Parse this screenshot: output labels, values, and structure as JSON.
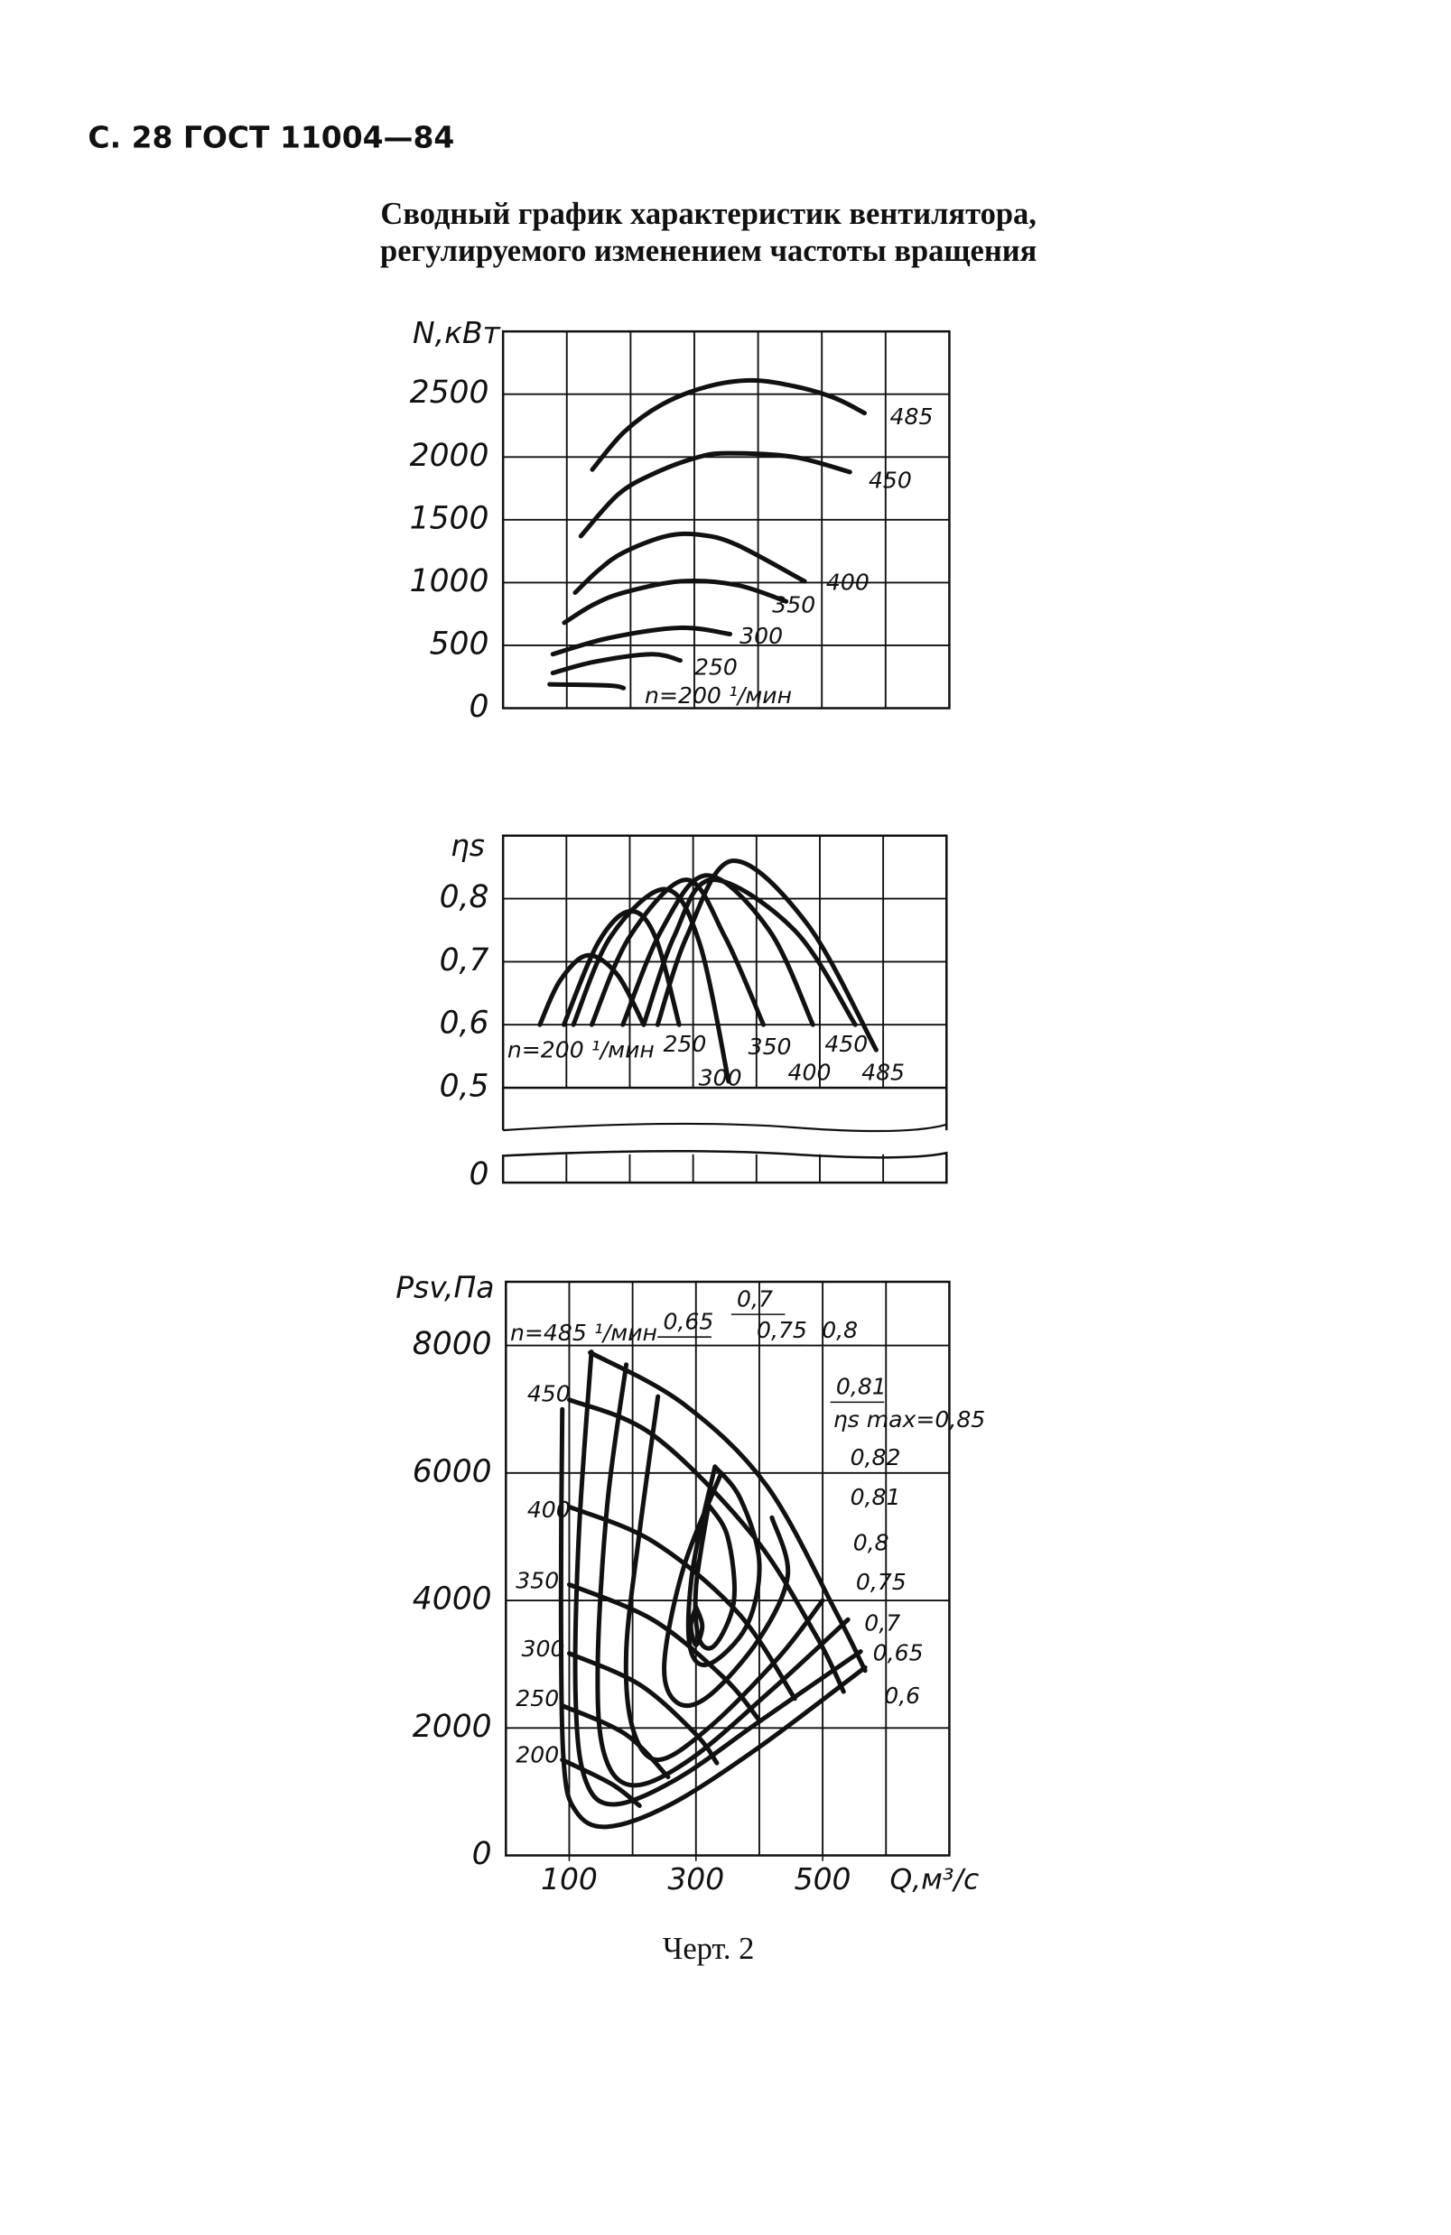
{
  "header": "С. 28 ГОСТ 11004—84",
  "title": [
    "Сводный график характеристик вентилятора,",
    "регулируемого изменением частоты вращения"
  ],
  "caption": "Черт. 2",
  "chart_data": [
    {
      "type": "line",
      "ylabel": "N,кВт",
      "xlim": [
        0,
        700
      ],
      "xgrid": [
        100,
        200,
        300,
        400,
        500,
        600
      ],
      "ylim": [
        0,
        3000
      ],
      "yticks": [
        0,
        500,
        1000,
        1500,
        2000,
        2500
      ],
      "color": "#111111",
      "series": [
        {
          "name": "485",
          "x": [
            140,
            190,
            250,
            320,
            390,
            460,
            520,
            567
          ],
          "values": [
            1900,
            2200,
            2420,
            2560,
            2610,
            2560,
            2470,
            2350
          ]
        },
        {
          "name": "450",
          "x": [
            122,
            180,
            233,
            300,
            350,
            456,
            544
          ],
          "values": [
            1370,
            1700,
            1860,
            1990,
            2030,
            2000,
            1880
          ]
        },
        {
          "name": "400",
          "x": [
            113,
            150,
            189,
            256,
            310,
            367,
            473
          ],
          "values": [
            920,
            1100,
            1240,
            1370,
            1380,
            1300,
            1010
          ]
        },
        {
          "name": "350",
          "x": [
            96,
            140,
            189,
            278,
            367,
            444
          ],
          "values": [
            680,
            820,
            920,
            1010,
            980,
            850
          ]
        },
        {
          "name": "300",
          "x": [
            78,
            167,
            278,
            356
          ],
          "values": [
            430,
            560,
            640,
            590
          ]
        },
        {
          "name": "250",
          "x": [
            78,
            144,
            233,
            278
          ],
          "values": [
            280,
            370,
            430,
            380
          ]
        },
        {
          "name": "n=200 ¹/мин",
          "x": [
            73,
            167,
            189
          ],
          "values": [
            190,
            180,
            160
          ]
        }
      ]
    },
    {
      "type": "line",
      "ylabel": "ηs",
      "xlim": [
        0,
        700
      ],
      "xgrid": [
        100,
        200,
        300,
        400,
        500,
        600
      ],
      "ylim": [
        0.5,
        0.9
      ],
      "yticks": [
        {
          "value": 0.5,
          "label": "0,5"
        },
        {
          "value": 0.6,
          "label": "0,6"
        },
        {
          "value": 0.7,
          "label": "0,7"
        },
        {
          "value": 0.8,
          "label": "0,8"
        }
      ],
      "ybreak_tick": 0,
      "color": "#111111",
      "series": [
        {
          "name": "n=200 ¹/мин",
          "x": [
            58,
            90,
            133,
            180,
            222
          ],
          "values": [
            0.6,
            0.67,
            0.71,
            0.68,
            0.6
          ]
        },
        {
          "name": "250",
          "x": [
            96,
            150,
            200,
            240,
            278
          ],
          "values": [
            0.6,
            0.73,
            0.78,
            0.74,
            0.6
          ]
        },
        {
          "name": "300",
          "x": [
            111,
            170,
            256,
            310,
            356
          ],
          "values": [
            0.6,
            0.74,
            0.815,
            0.73,
            0.51
          ]
        },
        {
          "name": "350",
          "x": [
            140,
            200,
            289,
            350,
            411
          ],
          "values": [
            0.6,
            0.74,
            0.83,
            0.74,
            0.6
          ]
        },
        {
          "name": "400",
          "x": [
            189,
            250,
            322,
            420,
            489
          ],
          "values": [
            0.6,
            0.75,
            0.837,
            0.75,
            0.6
          ]
        },
        {
          "name": "450",
          "x": [
            222,
            270,
            330,
            460,
            556
          ],
          "values": [
            0.6,
            0.74,
            0.83,
            0.75,
            0.6
          ]
        },
        {
          "name": "485",
          "x": [
            244,
            290,
            362,
            480,
            589
          ],
          "values": [
            0.6,
            0.74,
            0.86,
            0.76,
            0.56
          ]
        }
      ]
    },
    {
      "type": "line",
      "ylabel": "Psv,Па",
      "xlabel": "Q,м³/с",
      "xlim": [
        0,
        700
      ],
      "xgrid": [
        100,
        200,
        300,
        400,
        500,
        600
      ],
      "xticks": [
        100,
        300,
        500
      ],
      "ylim": [
        0,
        9000
      ],
      "yticks": [
        0,
        2000,
        4000,
        6000,
        8000
      ],
      "color": "#111111",
      "series": [
        {
          "name": "n=485 ¹/мин",
          "x": [
            133,
            278,
            411,
            522,
            567
          ],
          "values": [
            7890,
            7100,
            5810,
            3800,
            2900
          ]
        },
        {
          "name": "450",
          "x": [
            100,
            233,
            389,
            489,
            533
          ],
          "values": [
            7150,
            6590,
            5030,
            3460,
            2570
          ]
        },
        {
          "name": "400",
          "x": [
            100,
            233,
            367,
            456
          ],
          "values": [
            5470,
            4920,
            3800,
            2460
          ]
        },
        {
          "name": "350",
          "x": [
            100,
            233,
            344,
            400
          ],
          "values": [
            4250,
            3690,
            2790,
            2120
          ]
        },
        {
          "name": "300",
          "x": [
            100,
            211,
            300,
            333
          ],
          "values": [
            3170,
            2680,
            1900,
            1450
          ]
        },
        {
          "name": "250",
          "x": [
            89,
            189,
            256
          ],
          "values": [
            2350,
            1900,
            1230
          ]
        },
        {
          "name": "200",
          "x": [
            89,
            167,
            211
          ],
          "values": [
            1500,
            1120,
            780
          ]
        },
        {
          "name": "0,6",
          "x": [
            89,
            87,
            91,
            110,
            160,
            260,
            400,
            567
          ],
          "values": [
            7000,
            4000,
            1500,
            700,
            450,
            800,
            1700,
            2950
          ]
        },
        {
          "name": "0,65",
          "x": [
            135,
            115,
            110,
            125,
            170,
            270,
            400,
            560
          ],
          "values": [
            7900,
            5000,
            2500,
            1200,
            800,
            1200,
            2100,
            3200
          ]
        },
        {
          "name": "0,7",
          "x": [
            190,
            160,
            145,
            155,
            200,
            290,
            420,
            540
          ],
          "values": [
            7700,
            5500,
            3000,
            1600,
            1100,
            1500,
            2600,
            3700
          ]
        },
        {
          "name": "0,75",
          "x": [
            240,
            210,
            190,
            200,
            240,
            320,
            430,
            500
          ],
          "values": [
            7200,
            5000,
            3200,
            2000,
            1500,
            2000,
            3100,
            4000
          ]
        },
        {
          "name": "0,8",
          "x": [
            340,
            280,
            250,
            270,
            320,
            400,
            445,
            420
          ],
          "values": [
            6000,
            4500,
            3000,
            2400,
            2500,
            3400,
            4400,
            5300
          ]
        },
        {
          "name": "0,81",
          "x": [
            330,
            295,
            290,
            320,
            380,
            400,
            370,
            330
          ],
          "values": [
            6100,
            4500,
            3300,
            3000,
            3600,
            4600,
            5600,
            6100
          ]
        },
        {
          "name": "0,82",
          "x": [
            320,
            300,
            305,
            330,
            360,
            350,
            320
          ],
          "values": [
            5500,
            4200,
            3400,
            3300,
            4000,
            5000,
            5500
          ]
        },
        {
          "name": "ηs max=0,85",
          "x": [
            300,
            292,
            300,
            310,
            300
          ],
          "values": [
            3900,
            3600,
            3300,
            3600,
            3900
          ]
        }
      ],
      "annotations": [
        "0,65",
        "0,7",
        "0,75",
        "0,8",
        "0,81"
      ]
    }
  ]
}
